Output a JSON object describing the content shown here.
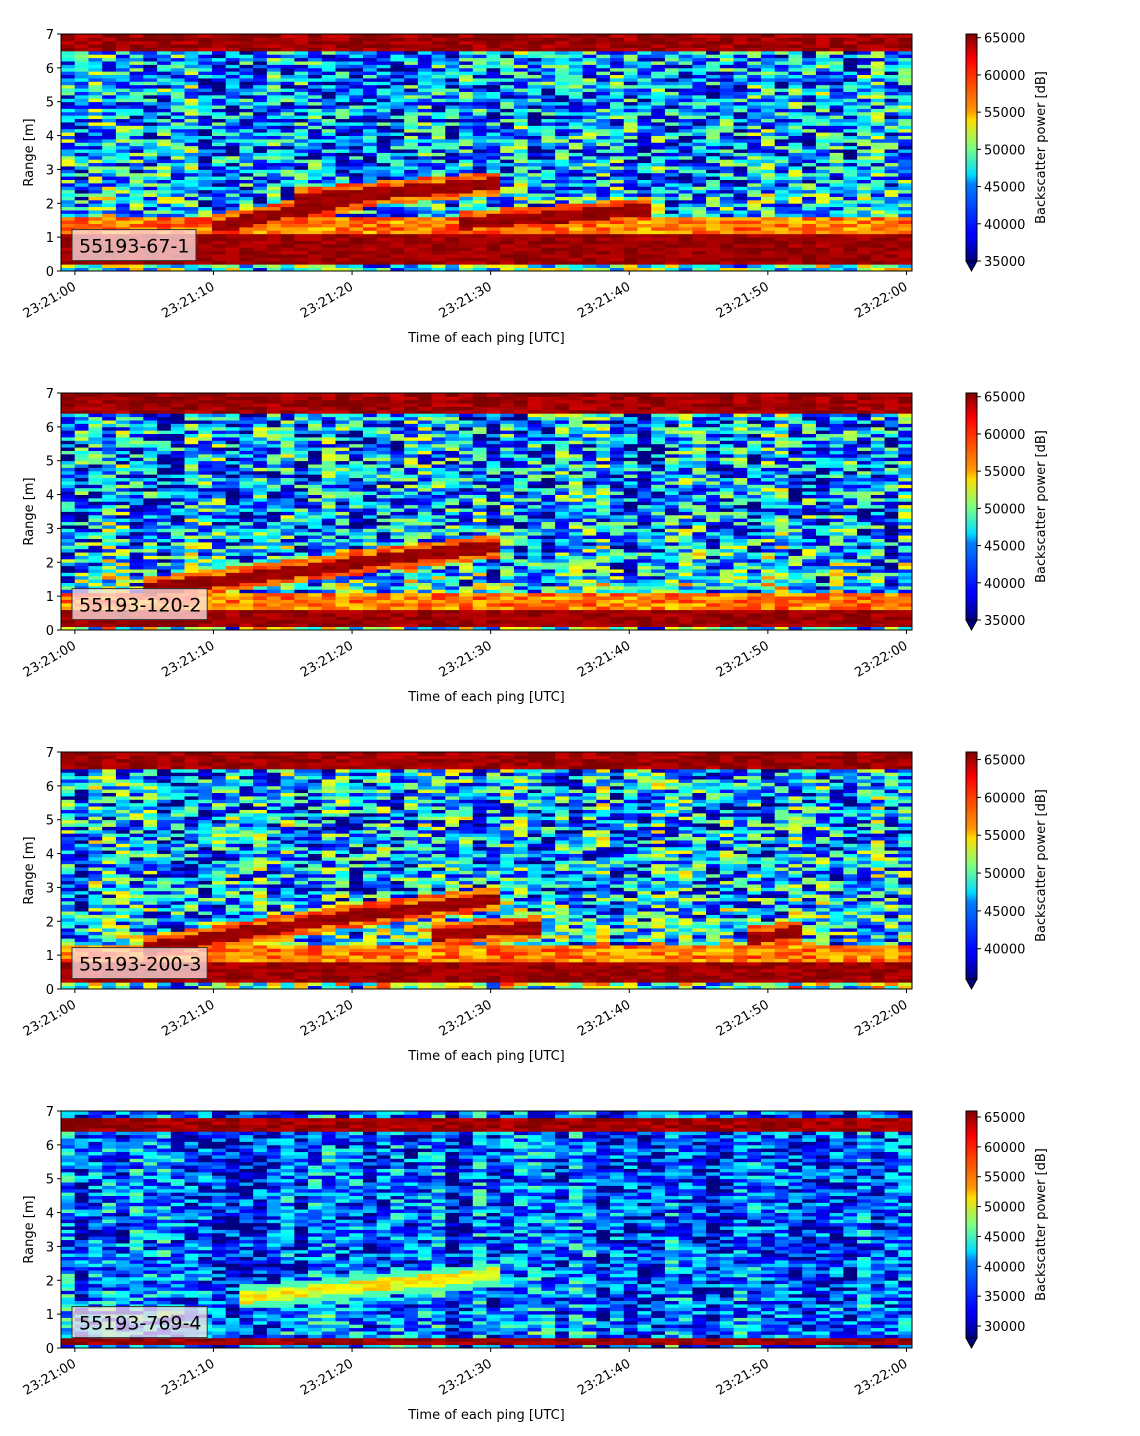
{
  "chart_data": [
    {
      "type": "heatmap",
      "label": "55193-67-1",
      "x_ticks": [
        "23:21:00",
        "23:21:10",
        "23:21:20",
        "23:21:30",
        "23:21:40",
        "23:21:50",
        "23:22:00"
      ],
      "x_seconds": [
        0,
        10,
        20,
        30,
        40,
        50,
        60
      ],
      "xlim": [
        -1,
        60.4
      ],
      "y_ticks": [
        0,
        1,
        2,
        3,
        4,
        5,
        6,
        7
      ],
      "ylim": [
        0,
        7
      ],
      "xlabel": "Time of each ping [UTC]",
      "ylabel": "Range [m]",
      "colorbar": {
        "label": "Backscatter power [dB]",
        "ticks": [
          35000,
          40000,
          45000,
          50000,
          55000,
          60000,
          65000
        ],
        "range": [
          35000,
          65500
        ]
      },
      "structure": {
        "surface_band_m": [
          6.55,
          7.0
        ],
        "bottom_band_m": [
          0.25,
          1.05
        ],
        "target_tracks": [
          {
            "t_start": 10,
            "t_end": 22,
            "y_start": 1.3,
            "y_end": 2.3
          },
          {
            "t_start": 16,
            "t_end": 31,
            "y_start": 2.1,
            "y_end": 2.6
          },
          {
            "t_start": 28,
            "t_end": 42,
            "y_start": 1.4,
            "y_end": 1.85
          }
        ],
        "noise_level": 0.3
      }
    },
    {
      "type": "heatmap",
      "label": "55193-120-2",
      "x_ticks": [
        "23:21:00",
        "23:21:10",
        "23:21:20",
        "23:21:30",
        "23:21:40",
        "23:21:50",
        "23:22:00"
      ],
      "x_seconds": [
        0,
        10,
        20,
        30,
        40,
        50,
        60
      ],
      "xlim": [
        -1,
        60.4
      ],
      "y_ticks": [
        0,
        1,
        2,
        3,
        4,
        5,
        6,
        7
      ],
      "ylim": [
        0,
        7
      ],
      "xlabel": "Time of each ping [UTC]",
      "ylabel": "Range [m]",
      "colorbar": {
        "label": "Backscatter power [dB]",
        "ticks": [
          35000,
          40000,
          45000,
          50000,
          55000,
          60000,
          65000
        ],
        "range": [
          35000,
          65500
        ]
      },
      "structure": {
        "surface_band_m": [
          6.45,
          7.0
        ],
        "bottom_band_m": [
          0.15,
          0.55
        ],
        "target_tracks": [
          {
            "t_start": 5,
            "t_end": 21,
            "y_start": 1.2,
            "y_end": 2.0
          },
          {
            "t_start": 20,
            "t_end": 31,
            "y_start": 2.0,
            "y_end": 2.5
          }
        ],
        "noise_level": 0.32
      }
    },
    {
      "type": "heatmap",
      "label": "55193-200-3",
      "x_ticks": [
        "23:21:00",
        "23:21:10",
        "23:21:20",
        "23:21:30",
        "23:21:40",
        "23:21:50",
        "23:22:00"
      ],
      "x_seconds": [
        0,
        10,
        20,
        30,
        40,
        50,
        60
      ],
      "xlim": [
        -1,
        60.4
      ],
      "y_ticks": [
        0,
        1,
        2,
        3,
        4,
        5,
        6,
        7
      ],
      "ylim": [
        0,
        7
      ],
      "xlabel": "Time of each ping [UTC]",
      "ylabel": "Range [m]",
      "colorbar": {
        "label": "Backscatter power [dB]",
        "ticks": [
          40000,
          45000,
          50000,
          55000,
          60000,
          65000
        ],
        "range": [
          36000,
          66000
        ]
      },
      "structure": {
        "surface_band_m": [
          6.5,
          7.0
        ],
        "bottom_band_m": [
          0.25,
          0.75
        ],
        "target_tracks": [
          {
            "t_start": 5,
            "t_end": 22,
            "y_start": 1.2,
            "y_end": 2.3
          },
          {
            "t_start": 21,
            "t_end": 31,
            "y_start": 2.2,
            "y_end": 2.7
          },
          {
            "t_start": 26,
            "t_end": 34,
            "y_start": 1.6,
            "y_end": 1.85
          },
          {
            "t_start": 49,
            "t_end": 52,
            "y_start": 1.5,
            "y_end": 1.7
          }
        ],
        "noise_level": 0.33
      }
    },
    {
      "type": "heatmap",
      "label": "55193-769-4",
      "x_ticks": [
        "23:21:00",
        "23:21:10",
        "23:21:20",
        "23:21:30",
        "23:21:40",
        "23:21:50",
        "23:22:00"
      ],
      "x_seconds": [
        0,
        10,
        20,
        30,
        40,
        50,
        60
      ],
      "xlim": [
        -1,
        60.4
      ],
      "y_ticks": [
        0,
        1,
        2,
        3,
        4,
        5,
        6,
        7
      ],
      "ylim": [
        0,
        7
      ],
      "xlabel": "Time of each ping [UTC]",
      "ylabel": "Range [m]",
      "colorbar": {
        "label": "Backscatter power [dB]",
        "ticks": [
          30000,
          35000,
          40000,
          45000,
          50000,
          55000,
          60000,
          65000
        ],
        "range": [
          28000,
          66000
        ]
      },
      "structure": {
        "surface_band_m": [
          6.45,
          6.85
        ],
        "bottom_band_m": [
          0.15,
          0.3
        ],
        "target_tracks": [
          {
            "t_start": 12,
            "t_end": 31,
            "y_start": 1.5,
            "y_end": 2.2
          }
        ],
        "noise_level": 0.22,
        "low_contrast": true
      }
    }
  ]
}
